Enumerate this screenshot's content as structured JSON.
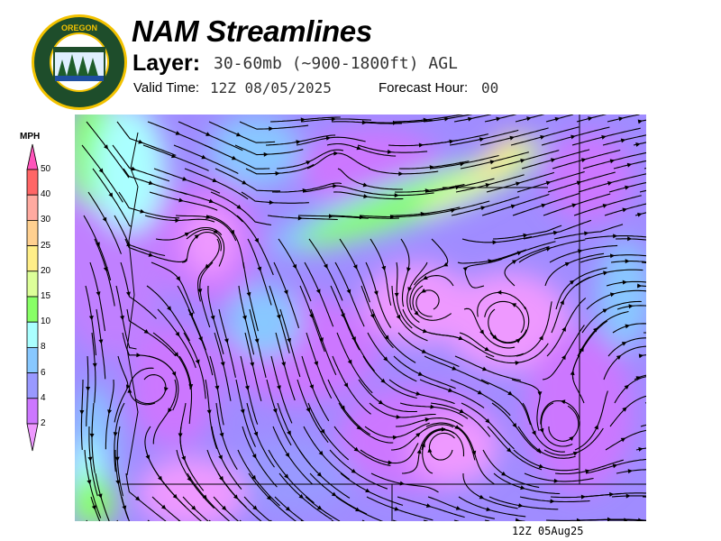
{
  "header": {
    "title": "NAM Streamlines",
    "layer_label": "Layer:",
    "layer_value": "30-60mb (~900-1800ft) AGL",
    "valid_label": "Valid Time:",
    "valid_value": "12Z 08/05/2025",
    "forecast_label": "Forecast Hour:",
    "forecast_value": "00"
  },
  "logo": {
    "text_top": "OREGON",
    "text_bottom": "DEPARTMENT OF FORESTRY"
  },
  "legend": {
    "unit": "MPH",
    "ticks": [
      "50",
      "40",
      "30",
      "25",
      "20",
      "15",
      "10",
      "8",
      "6",
      "4",
      "2"
    ],
    "colors": [
      "#ff55bb",
      "#ff6666",
      "#ffaaa0",
      "#ffd090",
      "#ffee88",
      "#ddff99",
      "#88ff66",
      "#aaffff",
      "#88c8ff",
      "#9999ff",
      "#cc77ff",
      "#ee99ff"
    ]
  },
  "footer": {
    "timestamp": "12Z 05Aug25"
  }
}
